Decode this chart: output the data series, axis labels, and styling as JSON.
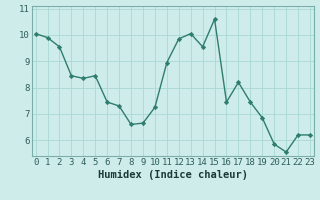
{
  "x": [
    0,
    1,
    2,
    3,
    4,
    5,
    6,
    7,
    8,
    9,
    10,
    11,
    12,
    13,
    14,
    15,
    16,
    17,
    18,
    19,
    20,
    21,
    22,
    23
  ],
  "y": [
    10.05,
    9.9,
    9.55,
    8.45,
    8.35,
    8.45,
    7.45,
    7.3,
    6.6,
    6.65,
    7.25,
    8.95,
    9.85,
    10.05,
    9.55,
    10.6,
    7.45,
    8.2,
    7.45,
    6.85,
    5.85,
    5.55,
    6.2,
    6.2
  ],
  "xlabel": "Humidex (Indice chaleur)",
  "xlim": [
    -0.3,
    23.3
  ],
  "ylim": [
    5.4,
    11.1
  ],
  "yticks": [
    6,
    7,
    8,
    9,
    10,
    11
  ],
  "xticks": [
    0,
    1,
    2,
    3,
    4,
    5,
    6,
    7,
    8,
    9,
    10,
    11,
    12,
    13,
    14,
    15,
    16,
    17,
    18,
    19,
    20,
    21,
    22,
    23
  ],
  "line_color": "#2e7d6d",
  "marker": "D",
  "marker_size": 2.2,
  "bg_color": "#ceecea",
  "grid_color": "#aad8d4",
  "spine_color": "#7aaeaa",
  "tick_label_color": "#2e5e58",
  "xlabel_color": "#1a3a36",
  "xlabel_fontsize": 7.5,
  "tick_fontsize": 6.5,
  "linewidth": 1.0
}
